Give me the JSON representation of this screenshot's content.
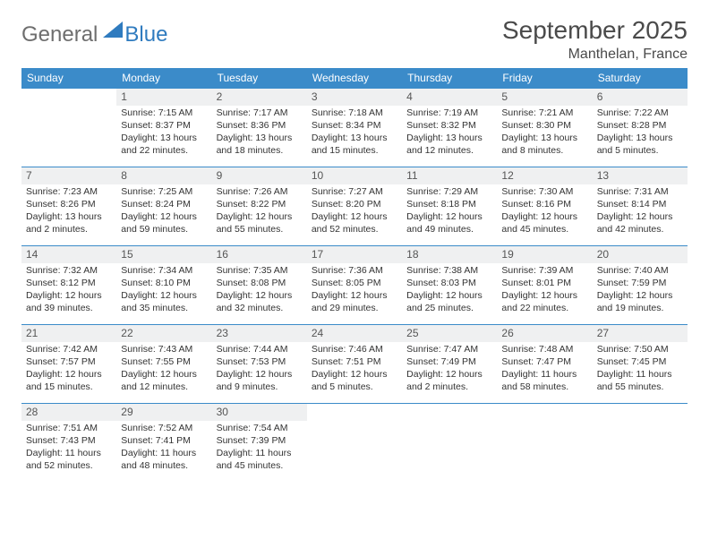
{
  "logo": {
    "general": "General",
    "blue": "Blue"
  },
  "title": "September 2025",
  "location": "Manthelan, France",
  "colors": {
    "header_bg": "#3b8bc9",
    "header_text": "#ffffff",
    "daynum_bg": "#eff0f1",
    "border": "#3b8bc9",
    "logo_gray": "#6e6e6e",
    "logo_blue": "#2f7bbf",
    "body_text": "#333333"
  },
  "day_headers": [
    "Sunday",
    "Monday",
    "Tuesday",
    "Wednesday",
    "Thursday",
    "Friday",
    "Saturday"
  ],
  "weeks": [
    [
      {
        "blank": true
      },
      {
        "n": "1",
        "sunrise": "Sunrise: 7:15 AM",
        "sunset": "Sunset: 8:37 PM",
        "d1": "Daylight: 13 hours",
        "d2": "and 22 minutes."
      },
      {
        "n": "2",
        "sunrise": "Sunrise: 7:17 AM",
        "sunset": "Sunset: 8:36 PM",
        "d1": "Daylight: 13 hours",
        "d2": "and 18 minutes."
      },
      {
        "n": "3",
        "sunrise": "Sunrise: 7:18 AM",
        "sunset": "Sunset: 8:34 PM",
        "d1": "Daylight: 13 hours",
        "d2": "and 15 minutes."
      },
      {
        "n": "4",
        "sunrise": "Sunrise: 7:19 AM",
        "sunset": "Sunset: 8:32 PM",
        "d1": "Daylight: 13 hours",
        "d2": "and 12 minutes."
      },
      {
        "n": "5",
        "sunrise": "Sunrise: 7:21 AM",
        "sunset": "Sunset: 8:30 PM",
        "d1": "Daylight: 13 hours",
        "d2": "and 8 minutes."
      },
      {
        "n": "6",
        "sunrise": "Sunrise: 7:22 AM",
        "sunset": "Sunset: 8:28 PM",
        "d1": "Daylight: 13 hours",
        "d2": "and 5 minutes."
      }
    ],
    [
      {
        "n": "7",
        "sunrise": "Sunrise: 7:23 AM",
        "sunset": "Sunset: 8:26 PM",
        "d1": "Daylight: 13 hours",
        "d2": "and 2 minutes."
      },
      {
        "n": "8",
        "sunrise": "Sunrise: 7:25 AM",
        "sunset": "Sunset: 8:24 PM",
        "d1": "Daylight: 12 hours",
        "d2": "and 59 minutes."
      },
      {
        "n": "9",
        "sunrise": "Sunrise: 7:26 AM",
        "sunset": "Sunset: 8:22 PM",
        "d1": "Daylight: 12 hours",
        "d2": "and 55 minutes."
      },
      {
        "n": "10",
        "sunrise": "Sunrise: 7:27 AM",
        "sunset": "Sunset: 8:20 PM",
        "d1": "Daylight: 12 hours",
        "d2": "and 52 minutes."
      },
      {
        "n": "11",
        "sunrise": "Sunrise: 7:29 AM",
        "sunset": "Sunset: 8:18 PM",
        "d1": "Daylight: 12 hours",
        "d2": "and 49 minutes."
      },
      {
        "n": "12",
        "sunrise": "Sunrise: 7:30 AM",
        "sunset": "Sunset: 8:16 PM",
        "d1": "Daylight: 12 hours",
        "d2": "and 45 minutes."
      },
      {
        "n": "13",
        "sunrise": "Sunrise: 7:31 AM",
        "sunset": "Sunset: 8:14 PM",
        "d1": "Daylight: 12 hours",
        "d2": "and 42 minutes."
      }
    ],
    [
      {
        "n": "14",
        "sunrise": "Sunrise: 7:32 AM",
        "sunset": "Sunset: 8:12 PM",
        "d1": "Daylight: 12 hours",
        "d2": "and 39 minutes."
      },
      {
        "n": "15",
        "sunrise": "Sunrise: 7:34 AM",
        "sunset": "Sunset: 8:10 PM",
        "d1": "Daylight: 12 hours",
        "d2": "and 35 minutes."
      },
      {
        "n": "16",
        "sunrise": "Sunrise: 7:35 AM",
        "sunset": "Sunset: 8:08 PM",
        "d1": "Daylight: 12 hours",
        "d2": "and 32 minutes."
      },
      {
        "n": "17",
        "sunrise": "Sunrise: 7:36 AM",
        "sunset": "Sunset: 8:05 PM",
        "d1": "Daylight: 12 hours",
        "d2": "and 29 minutes."
      },
      {
        "n": "18",
        "sunrise": "Sunrise: 7:38 AM",
        "sunset": "Sunset: 8:03 PM",
        "d1": "Daylight: 12 hours",
        "d2": "and 25 minutes."
      },
      {
        "n": "19",
        "sunrise": "Sunrise: 7:39 AM",
        "sunset": "Sunset: 8:01 PM",
        "d1": "Daylight: 12 hours",
        "d2": "and 22 minutes."
      },
      {
        "n": "20",
        "sunrise": "Sunrise: 7:40 AM",
        "sunset": "Sunset: 7:59 PM",
        "d1": "Daylight: 12 hours",
        "d2": "and 19 minutes."
      }
    ],
    [
      {
        "n": "21",
        "sunrise": "Sunrise: 7:42 AM",
        "sunset": "Sunset: 7:57 PM",
        "d1": "Daylight: 12 hours",
        "d2": "and 15 minutes."
      },
      {
        "n": "22",
        "sunrise": "Sunrise: 7:43 AM",
        "sunset": "Sunset: 7:55 PM",
        "d1": "Daylight: 12 hours",
        "d2": "and 12 minutes."
      },
      {
        "n": "23",
        "sunrise": "Sunrise: 7:44 AM",
        "sunset": "Sunset: 7:53 PM",
        "d1": "Daylight: 12 hours",
        "d2": "and 9 minutes."
      },
      {
        "n": "24",
        "sunrise": "Sunrise: 7:46 AM",
        "sunset": "Sunset: 7:51 PM",
        "d1": "Daylight: 12 hours",
        "d2": "and 5 minutes."
      },
      {
        "n": "25",
        "sunrise": "Sunrise: 7:47 AM",
        "sunset": "Sunset: 7:49 PM",
        "d1": "Daylight: 12 hours",
        "d2": "and 2 minutes."
      },
      {
        "n": "26",
        "sunrise": "Sunrise: 7:48 AM",
        "sunset": "Sunset: 7:47 PM",
        "d1": "Daylight: 11 hours",
        "d2": "and 58 minutes."
      },
      {
        "n": "27",
        "sunrise": "Sunrise: 7:50 AM",
        "sunset": "Sunset: 7:45 PM",
        "d1": "Daylight: 11 hours",
        "d2": "and 55 minutes."
      }
    ],
    [
      {
        "n": "28",
        "sunrise": "Sunrise: 7:51 AM",
        "sunset": "Sunset: 7:43 PM",
        "d1": "Daylight: 11 hours",
        "d2": "and 52 minutes."
      },
      {
        "n": "29",
        "sunrise": "Sunrise: 7:52 AM",
        "sunset": "Sunset: 7:41 PM",
        "d1": "Daylight: 11 hours",
        "d2": "and 48 minutes."
      },
      {
        "n": "30",
        "sunrise": "Sunrise: 7:54 AM",
        "sunset": "Sunset: 7:39 PM",
        "d1": "Daylight: 11 hours",
        "d2": "and 45 minutes."
      },
      {
        "blank": true
      },
      {
        "blank": true
      },
      {
        "blank": true
      },
      {
        "blank": true
      }
    ]
  ]
}
